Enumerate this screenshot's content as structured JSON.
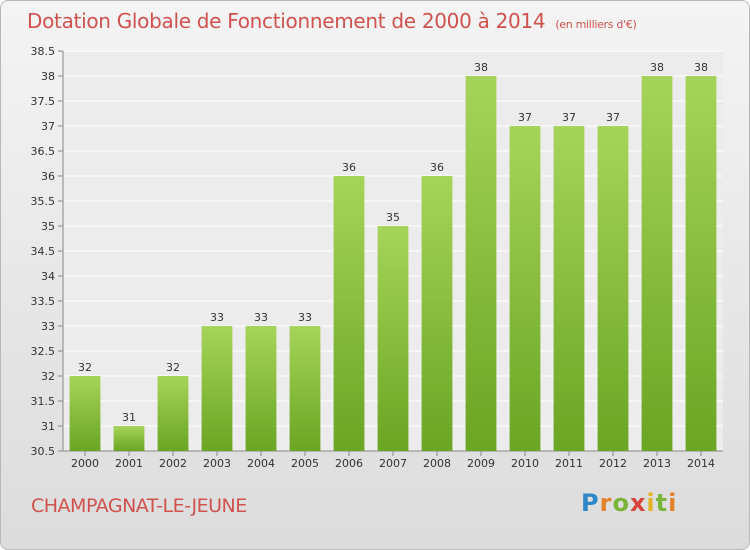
{
  "title": "Dotation Globale de Fonctionnement de 2000 à 2014",
  "unit": "(en milliers d'€)",
  "location": "CHAMPAGNAT-LE-JEUNE",
  "logo": {
    "text": "Proxiti"
  },
  "colors": {
    "bar_top": "#a6d45a",
    "bar_bottom": "#6aa523",
    "accent": "#d0524e"
  },
  "chart_data": {
    "type": "bar",
    "title": "Dotation Globale de Fonctionnement de 2000 à 2014",
    "subtitle": "(en milliers d'€)",
    "categories": [
      "2000",
      "2001",
      "2002",
      "2003",
      "2004",
      "2005",
      "2006",
      "2007",
      "2008",
      "2009",
      "2010",
      "2011",
      "2012",
      "2013",
      "2014"
    ],
    "values": [
      32,
      31,
      32,
      33,
      33,
      33,
      36,
      35,
      36,
      38,
      37,
      37,
      37,
      38,
      38
    ],
    "data_labels": [
      "32",
      "31",
      "32",
      "33",
      "33",
      "33",
      "36",
      "35",
      "36",
      "38",
      "37",
      "37",
      "37",
      "38",
      "38"
    ],
    "y_ticks": [
      "30.5",
      "31",
      "31.5",
      "32",
      "32.5",
      "33",
      "33.5",
      "34",
      "34.5",
      "35",
      "35.5",
      "36",
      "36.5",
      "37",
      "37.5",
      "38",
      "38.5"
    ],
    "ylim": [
      30.5,
      38.5
    ],
    "grid": true,
    "xlabel": "",
    "ylabel": ""
  }
}
